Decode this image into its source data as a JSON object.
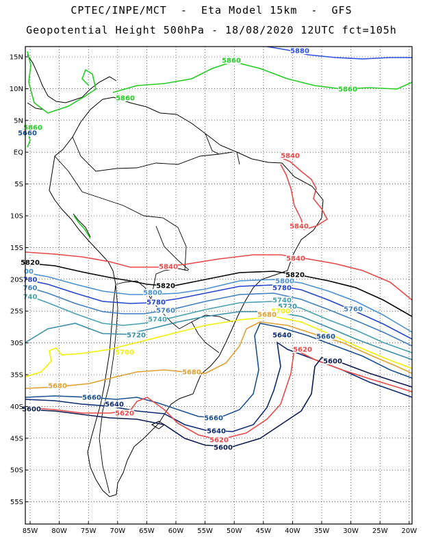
{
  "title_line1": "CPTEC/INPE/MCT  -  Eta Model 15km  -  GFS",
  "title_line2": "Geopotential Height 500hPa - 18/08/2020 12UTC fct=105h",
  "lat_labels": [
    "15N",
    "10N",
    "5N",
    "EQ",
    "5S",
    "10S",
    "15S",
    "20S",
    "25S",
    "30S",
    "35S",
    "40S",
    "45S",
    "50S",
    "55S"
  ],
  "lon_labels": [
    "85W",
    "80W",
    "75W",
    "70W",
    "65W",
    "60W",
    "55W",
    "50W",
    "45W",
    "40W",
    "35W",
    "30W",
    "25W",
    "20W"
  ],
  "contour_colors": {
    "5880": "#2b4fe0",
    "5860": "#22cc22",
    "5840": "#e84848",
    "5820": "#000000",
    "5800": "#4a90d0",
    "5780": "#2244cc",
    "5760": "#3f7fbf",
    "5740": "#46a0b0",
    "5720": "#3a8fa8",
    "5700": "#f0f000",
    "5680": "#e0a030",
    "5660": "#1a5090",
    "5640": "#0a2a70",
    "5620": "#e84848",
    "5600": "#0a1a50"
  },
  "contour_labels": [
    {
      "id": "l5880a",
      "text": "5880",
      "level": "5880"
    },
    {
      "id": "l5860a",
      "text": "5860",
      "level": "5860"
    },
    {
      "id": "l5860b",
      "text": "5860",
      "level": "5860"
    },
    {
      "id": "l5860c",
      "text": "5860",
      "level": "5860"
    },
    {
      "id": "l5860d",
      "text": "5860",
      "level": "5860"
    },
    {
      "id": "l5840a",
      "text": "5840",
      "level": "5840"
    },
    {
      "id": "l5840b",
      "text": "5840",
      "level": "5840"
    },
    {
      "id": "l5840c",
      "text": "5840",
      "level": "5840"
    },
    {
      "id": "l5840d",
      "text": "5840",
      "level": "5840"
    },
    {
      "id": "l5820a",
      "text": "5820",
      "level": "5820"
    },
    {
      "id": "l5820b",
      "text": "5820",
      "level": "5820"
    },
    {
      "id": "l5820c",
      "text": "5820",
      "level": "5820"
    },
    {
      "id": "l5800a",
      "text": "5800",
      "level": "5800"
    },
    {
      "id": "l5800b",
      "text": "5800",
      "level": "5800"
    },
    {
      "id": "l5800c",
      "text": "00",
      "level": "5800"
    },
    {
      "id": "l5780a",
      "text": "5780",
      "level": "5780"
    },
    {
      "id": "l5780b",
      "text": "5780",
      "level": "5780"
    },
    {
      "id": "l5780c",
      "text": "780",
      "level": "5780"
    },
    {
      "id": "l5760a",
      "text": "5760",
      "level": "5760"
    },
    {
      "id": "l5760b",
      "text": "5760",
      "level": "5760"
    },
    {
      "id": "l5760c",
      "text": "760",
      "level": "5760"
    },
    {
      "id": "l5740a",
      "text": "5740",
      "level": "5740"
    },
    {
      "id": "l5740b",
      "text": "5740",
      "level": "5740"
    },
    {
      "id": "l5740c",
      "text": "740",
      "level": "5740"
    },
    {
      "id": "l5720a",
      "text": "5720",
      "level": "5720"
    },
    {
      "id": "l5720b",
      "text": "5720",
      "level": "5720"
    },
    {
      "id": "l5700a",
      "text": "5700",
      "level": "5700"
    },
    {
      "id": "l5700b",
      "text": "5700",
      "level": "5700"
    },
    {
      "id": "l5680a",
      "text": "5680",
      "level": "5680"
    },
    {
      "id": "l5680b",
      "text": "5680",
      "level": "5680"
    },
    {
      "id": "l5680c",
      "text": "5680",
      "level": "5680"
    },
    {
      "id": "l5660a",
      "text": "5660",
      "level": "5660"
    },
    {
      "id": "l5660b",
      "text": "5660",
      "level": "5660"
    },
    {
      "id": "l5660c",
      "text": "5660",
      "level": "5660"
    },
    {
      "id": "l5660d",
      "text": "5660",
      "level": "5660"
    },
    {
      "id": "l5640a",
      "text": "5640",
      "level": "5640"
    },
    {
      "id": "l5640b",
      "text": "5640",
      "level": "5640"
    },
    {
      "id": "l5640c",
      "text": "5640",
      "level": "5640"
    },
    {
      "id": "l5620a",
      "text": "5620",
      "level": "5620"
    },
    {
      "id": "l5620b",
      "text": "5620",
      "level": "5620"
    },
    {
      "id": "l5620c",
      "text": "5620",
      "level": "5620"
    },
    {
      "id": "l5600a",
      "text": "5600",
      "level": "5600"
    },
    {
      "id": "l5600b",
      "text": "5600",
      "level": "5600"
    },
    {
      "id": "l5600c",
      "text": "5600",
      "level": "5600"
    }
  ]
}
